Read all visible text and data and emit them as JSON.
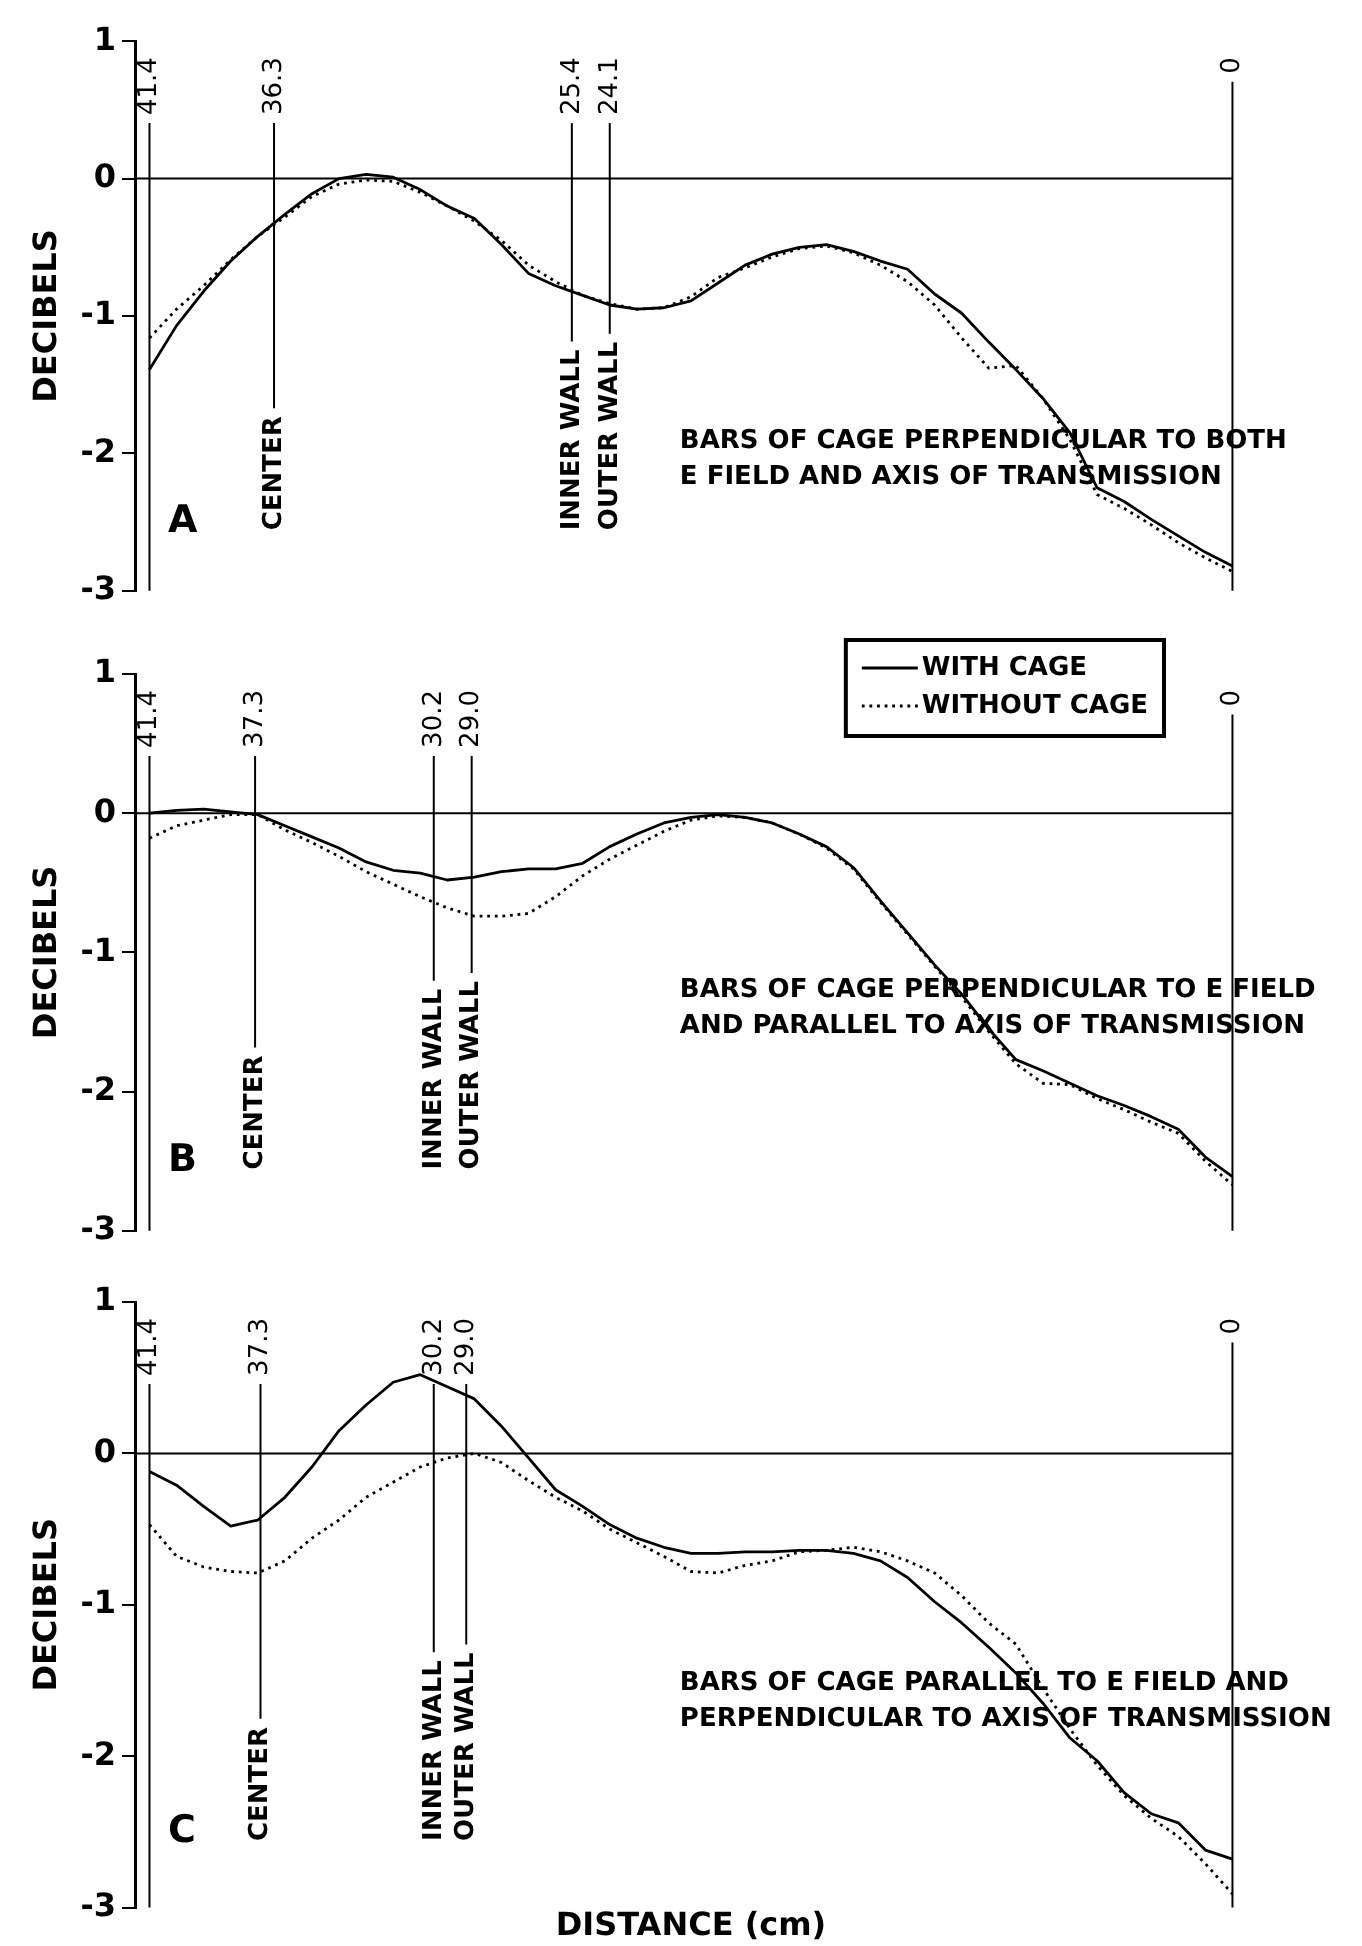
{
  "chart_data": [
    {
      "type": "line",
      "ylabel": "DECIBELS",
      "ylim": [
        -3,
        1
      ],
      "yticks": [
        -3,
        -2,
        -1,
        0,
        1
      ],
      "categories": [
        null,
        null,
        null,
        null,
        null,
        null,
        null,
        null,
        null,
        null,
        null,
        null,
        null,
        null,
        null,
        null,
        null,
        null,
        null,
        null,
        null,
        null,
        null,
        null,
        null,
        null,
        null,
        null,
        null,
        null,
        null,
        null,
        null,
        null,
        null,
        null,
        null,
        null,
        null,
        null,
        null
      ],
      "series": [
        {
          "color": "#000000",
          "line_style": "solid",
          "values": [
            -1.39,
            -1.07,
            -0.82,
            -0.6,
            -0.42,
            -0.26,
            -0.11,
            0.0,
            0.03,
            0.01,
            -0.08,
            -0.2,
            -0.29,
            -0.48,
            -0.69,
            -0.78,
            -0.85,
            -0.92,
            -0.95,
            -0.94,
            -0.89,
            -0.76,
            -0.63,
            -0.55,
            -0.5,
            -0.48,
            -0.53,
            -0.6,
            -0.66,
            -0.84,
            -0.98,
            -1.19,
            -1.39,
            -1.6,
            -1.85,
            -2.25,
            -2.35,
            -2.48,
            -2.6,
            -2.72,
            -2.82
          ]
        },
        {
          "color": "#000000",
          "line_style": "dotted",
          "values": [
            -1.16,
            -0.95,
            -0.78,
            -0.59,
            -0.42,
            -0.28,
            -0.13,
            -0.04,
            -0.01,
            -0.02,
            -0.1,
            -0.2,
            -0.31,
            -0.45,
            -0.63,
            -0.75,
            -0.85,
            -0.91,
            -0.95,
            -0.94,
            -0.86,
            -0.72,
            -0.65,
            -0.57,
            -0.51,
            -0.49,
            -0.54,
            -0.63,
            -0.75,
            -0.92,
            -1.16,
            -1.38,
            -1.36,
            -1.6,
            -1.9,
            -2.3,
            -2.4,
            -2.52,
            -2.65,
            -2.76,
            -2.86
          ]
        }
      ],
      "ref_lines": [
        {
          "axis": "y",
          "value": 0
        }
      ],
      "annotations": [
        "A",
        "BARS OF CAGE PERPENDICULAR TO BOTH\nE FIELD AND AXIS OF TRANSMISSION",
        "41.4",
        "36.3",
        "25.4",
        "24.1",
        "0",
        "CENTER",
        "INNER WALL",
        "OUTER WALL"
      ]
    },
    {
      "type": "line",
      "ylabel": "DECIBELS",
      "ylim": [
        -3,
        1
      ],
      "yticks": [
        -3,
        -2,
        -1,
        0,
        1
      ],
      "legend": "top right",
      "categories": [
        null,
        null,
        null,
        null,
        null,
        null,
        null,
        null,
        null,
        null,
        null,
        null,
        null,
        null,
        null,
        null,
        null,
        null,
        null,
        null,
        null,
        null,
        null,
        null,
        null,
        null,
        null,
        null,
        null,
        null,
        null,
        null,
        null,
        null,
        null,
        null,
        null,
        null,
        null,
        null,
        null
      ],
      "series": [
        {
          "name": "WITH CAGE",
          "color": "#000000",
          "line_style": "solid",
          "values": [
            0.0,
            0.02,
            0.03,
            0.01,
            -0.01,
            -0.09,
            -0.17,
            -0.25,
            -0.35,
            -0.41,
            -0.43,
            -0.48,
            -0.46,
            -0.42,
            -0.4,
            -0.4,
            -0.36,
            -0.24,
            -0.15,
            -0.07,
            -0.03,
            -0.01,
            -0.03,
            -0.07,
            -0.15,
            -0.24,
            -0.39,
            -0.63,
            -0.86,
            -1.09,
            -1.3,
            -1.55,
            -1.77,
            -1.85,
            -1.94,
            -2.03,
            -2.1,
            -2.18,
            -2.27,
            -2.47,
            -2.61
          ]
        },
        {
          "name": "WITHOUT CAGE",
          "color": "#000000",
          "line_style": "dotted",
          "values": [
            -0.18,
            -0.09,
            -0.05,
            -0.01,
            -0.01,
            -0.12,
            -0.21,
            -0.31,
            -0.42,
            -0.51,
            -0.6,
            -0.68,
            -0.74,
            -0.74,
            -0.72,
            -0.6,
            -0.45,
            -0.33,
            -0.23,
            -0.13,
            -0.05,
            -0.02,
            -0.03,
            -0.07,
            -0.15,
            -0.25,
            -0.4,
            -0.64,
            -0.87,
            -1.1,
            -1.32,
            -1.57,
            -1.8,
            -1.94,
            -1.95,
            -2.05,
            -2.13,
            -2.22,
            -2.3,
            -2.5,
            -2.67
          ]
        }
      ],
      "ref_lines": [
        {
          "axis": "y",
          "value": 0
        }
      ],
      "annotations": [
        "B",
        "BARS OF CAGE PERPENDICULAR TO E FIELD\nAND PARALLEL TO AXIS OF TRANSMISSION",
        "41.4",
        "37.3",
        "30.2",
        "29.0",
        "0",
        "CENTER",
        "INNER WALL",
        "OUTER WALL"
      ]
    },
    {
      "type": "line",
      "ylabel": "DECIBELS",
      "xlabel": "DISTANCE (cm)",
      "ylim": [
        -3,
        1
      ],
      "yticks": [
        -3,
        -2,
        -1,
        0,
        1
      ],
      "categories": [
        null,
        null,
        null,
        null,
        null,
        null,
        null,
        null,
        null,
        null,
        null,
        null,
        null,
        null,
        null,
        null,
        null,
        null,
        null,
        null,
        null,
        null,
        null,
        null,
        null,
        null,
        null,
        null,
        null,
        null,
        null,
        null,
        null,
        null,
        null,
        null,
        null,
        null,
        null,
        null,
        null
      ],
      "series": [
        {
          "color": "#000000",
          "line_style": "solid",
          "values": [
            -0.12,
            -0.21,
            -0.35,
            -0.48,
            -0.44,
            -0.29,
            -0.09,
            0.15,
            0.32,
            0.47,
            0.52,
            0.44,
            0.36,
            0.18,
            -0.03,
            -0.24,
            -0.35,
            -0.47,
            -0.56,
            -0.62,
            -0.66,
            -0.66,
            -0.65,
            -0.65,
            -0.64,
            -0.64,
            -0.66,
            -0.71,
            -0.82,
            -0.98,
            -1.12,
            -1.28,
            -1.45,
            -1.65,
            -1.88,
            -2.03,
            -2.24,
            -2.38,
            -2.44,
            -2.62,
            -2.68
          ]
        },
        {
          "color": "#000000",
          "line_style": "dotted",
          "values": [
            -0.47,
            -0.68,
            -0.75,
            -0.78,
            -0.79,
            -0.71,
            -0.56,
            -0.44,
            -0.29,
            -0.19,
            -0.09,
            -0.03,
            0.0,
            -0.06,
            -0.18,
            -0.29,
            -0.38,
            -0.5,
            -0.59,
            -0.68,
            -0.78,
            -0.79,
            -0.74,
            -0.71,
            -0.65,
            -0.64,
            -0.62,
            -0.65,
            -0.71,
            -0.79,
            -0.94,
            -1.12,
            -1.26,
            -1.55,
            -1.82,
            -2.06,
            -2.26,
            -2.41,
            -2.53,
            -2.71,
            -2.91
          ]
        }
      ],
      "ref_lines": [
        {
          "axis": "y",
          "value": 0
        }
      ],
      "annotations": [
        "C",
        "BARS OF CAGE PARALLEL TO E FIELD AND\nPERPENDICULAR TO AXIS OF TRANSMISSION",
        "41.4",
        "37.3",
        "30.2",
        "29.0",
        "0",
        "CENTER",
        "INNER WALL",
        "OUTER WALL"
      ]
    }
  ]
}
